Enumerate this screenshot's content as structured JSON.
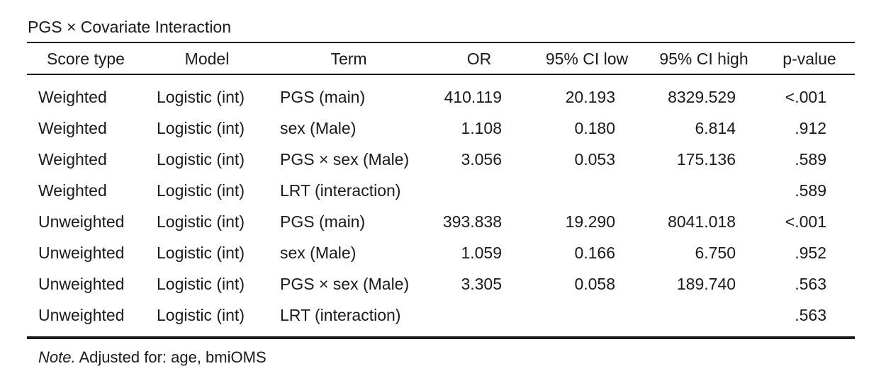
{
  "table": {
    "title": "PGS × Covariate Interaction",
    "headers": {
      "score_type": "Score type",
      "model": "Model",
      "term": "Term",
      "or": "OR",
      "ci_low": "95% CI low",
      "ci_high": "95% CI high",
      "p": "p-value"
    },
    "rows": [
      {
        "score_type": "Weighted",
        "model": "Logistic (int)",
        "term": "PGS (main)",
        "or": "410.119",
        "ci_low": "20.193",
        "ci_high": "8329.529",
        "p": "<.001"
      },
      {
        "score_type": "Weighted",
        "model": "Logistic (int)",
        "term": "sex (Male)",
        "or": "1.108",
        "ci_low": "0.180",
        "ci_high": "6.814",
        "p": ".912"
      },
      {
        "score_type": "Weighted",
        "model": "Logistic (int)",
        "term": "PGS × sex (Male)",
        "or": "3.056",
        "ci_low": "0.053",
        "ci_high": "175.136",
        "p": ".589"
      },
      {
        "score_type": "Weighted",
        "model": "Logistic (int)",
        "term": "LRT (interaction)",
        "or": "",
        "ci_low": "",
        "ci_high": "",
        "p": ".589"
      },
      {
        "score_type": "Unweighted",
        "model": "Logistic (int)",
        "term": "PGS (main)",
        "or": "393.838",
        "ci_low": "19.290",
        "ci_high": "8041.018",
        "p": "<.001"
      },
      {
        "score_type": "Unweighted",
        "model": "Logistic (int)",
        "term": "sex (Male)",
        "or": "1.059",
        "ci_low": "0.166",
        "ci_high": "6.750",
        "p": ".952"
      },
      {
        "score_type": "Unweighted",
        "model": "Logistic (int)",
        "term": "PGS × sex (Male)",
        "or": "3.305",
        "ci_low": "0.058",
        "ci_high": "189.740",
        "p": ".563"
      },
      {
        "score_type": "Unweighted",
        "model": "Logistic (int)",
        "term": "LRT (interaction)",
        "or": "",
        "ci_low": "",
        "ci_high": "",
        "p": ".563"
      }
    ],
    "note": {
      "label": "Note.",
      "text": "Adjusted for: age, bmiOMS"
    }
  }
}
